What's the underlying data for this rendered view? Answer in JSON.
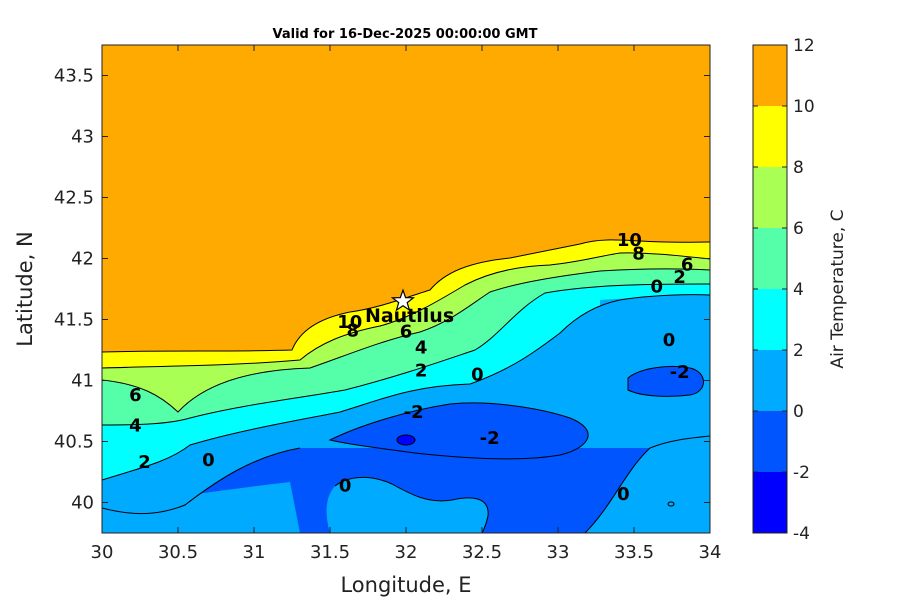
{
  "chart_data": {
    "type": "contour",
    "title": "Valid for 16-Dec-2025 00:00:00 GMT",
    "xlabel": "Longitude, E",
    "ylabel": "Latitude, N",
    "xlim": [
      30,
      34
    ],
    "ylim": [
      39.75,
      43.75
    ],
    "xticks": [
      "30",
      "30.5",
      "31",
      "31.5",
      "32",
      "32.5",
      "33",
      "33.5",
      "34"
    ],
    "yticks": [
      "40",
      "40.5",
      "41",
      "41.5",
      "42",
      "42.5",
      "43",
      "43.5"
    ],
    "colorbar": {
      "label": "Air Temperature, C",
      "ticks": [
        "-4",
        "-2",
        "0",
        "2",
        "4",
        "6",
        "8",
        "10",
        "12"
      ],
      "levels": [
        -4,
        -2,
        0,
        2,
        4,
        6,
        8,
        10,
        12
      ],
      "colors": [
        "#0000ff",
        "#0055ff",
        "#00aaff",
        "#00ffff",
        "#55ffaa",
        "#aaff55",
        "#ffff00",
        "#ffaa00",
        "#ff5500"
      ]
    },
    "contour_labels": [
      {
        "text": "10",
        "x": 33.47,
        "y": 42.15
      },
      {
        "text": "8",
        "x": 33.53,
        "y": 42.04
      },
      {
        "text": "6",
        "x": 33.85,
        "y": 41.95
      },
      {
        "text": "2",
        "x": 33.8,
        "y": 41.85
      },
      {
        "text": "0",
        "x": 33.65,
        "y": 41.77
      },
      {
        "text": "10",
        "x": 31.63,
        "y": 41.48
      },
      {
        "text": "8",
        "x": 31.65,
        "y": 41.41
      },
      {
        "text": "6",
        "x": 32.0,
        "y": 41.4
      },
      {
        "text": "4",
        "x": 32.1,
        "y": 41.27
      },
      {
        "text": "2",
        "x": 32.1,
        "y": 41.08
      },
      {
        "text": "0",
        "x": 32.47,
        "y": 41.05
      },
      {
        "text": "0",
        "x": 33.73,
        "y": 41.33
      },
      {
        "text": "-2",
        "x": 33.8,
        "y": 41.07
      },
      {
        "text": "-2",
        "x": 32.05,
        "y": 40.74
      },
      {
        "text": "-2",
        "x": 32.55,
        "y": 40.53
      },
      {
        "text": "6",
        "x": 30.22,
        "y": 40.88
      },
      {
        "text": "4",
        "x": 30.22,
        "y": 40.63
      },
      {
        "text": "2",
        "x": 30.28,
        "y": 40.33
      },
      {
        "text": "0",
        "x": 30.7,
        "y": 40.35
      },
      {
        "text": "0",
        "x": 31.6,
        "y": 40.14
      },
      {
        "text": "0",
        "x": 33.43,
        "y": 40.07
      }
    ],
    "station": {
      "name": "Nautilus",
      "x": 31.98,
      "y": 41.65
    }
  }
}
